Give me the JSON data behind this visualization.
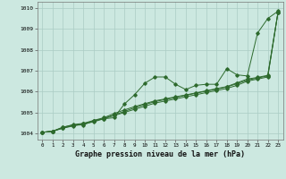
{
  "x": [
    0,
    1,
    2,
    3,
    4,
    5,
    6,
    7,
    8,
    9,
    10,
    11,
    12,
    13,
    14,
    15,
    16,
    17,
    18,
    19,
    20,
    21,
    22,
    23
  ],
  "line1": [
    1004.05,
    1004.1,
    1004.3,
    1004.4,
    1004.4,
    1004.6,
    1004.7,
    1004.75,
    1005.4,
    1005.85,
    1006.4,
    1006.7,
    1006.7,
    1006.35,
    1006.1,
    1006.3,
    1006.35,
    1006.35,
    1007.1,
    1006.8,
    1006.75,
    1008.8,
    1009.5,
    1009.85
  ],
  "line2": [
    1004.05,
    1004.1,
    1004.25,
    1004.35,
    1004.45,
    1004.55,
    1004.7,
    1004.85,
    1005.0,
    1005.15,
    1005.3,
    1005.45,
    1005.55,
    1005.65,
    1005.75,
    1005.85,
    1005.95,
    1006.05,
    1006.15,
    1006.3,
    1006.5,
    1006.6,
    1006.7,
    1009.8
  ],
  "line3": [
    1004.05,
    1004.1,
    1004.25,
    1004.38,
    1004.45,
    1004.58,
    1004.72,
    1004.88,
    1005.05,
    1005.22,
    1005.38,
    1005.52,
    1005.62,
    1005.72,
    1005.82,
    1005.92,
    1006.02,
    1006.12,
    1006.22,
    1006.38,
    1006.55,
    1006.65,
    1006.75,
    1009.8
  ],
  "line4": [
    1004.05,
    1004.1,
    1004.28,
    1004.42,
    1004.48,
    1004.62,
    1004.75,
    1004.95,
    1005.12,
    1005.28,
    1005.42,
    1005.56,
    1005.65,
    1005.75,
    1005.84,
    1005.94,
    1006.04,
    1006.14,
    1006.24,
    1006.42,
    1006.6,
    1006.68,
    1006.78,
    1009.8
  ],
  "line_color": "#2d6a2d",
  "bg_color": "#cce8e0",
  "grid_color": "#aaccc4",
  "xlabel": "Graphe pression niveau de la mer (hPa)",
  "ylim": [
    1003.7,
    1010.3
  ],
  "xlim": [
    -0.5,
    23.5
  ],
  "yticks": [
    1004,
    1005,
    1006,
    1007,
    1008,
    1009,
    1010
  ],
  "xticks": [
    0,
    1,
    2,
    3,
    4,
    5,
    6,
    7,
    8,
    9,
    10,
    11,
    12,
    13,
    14,
    15,
    16,
    17,
    18,
    19,
    20,
    21,
    22,
    23
  ]
}
